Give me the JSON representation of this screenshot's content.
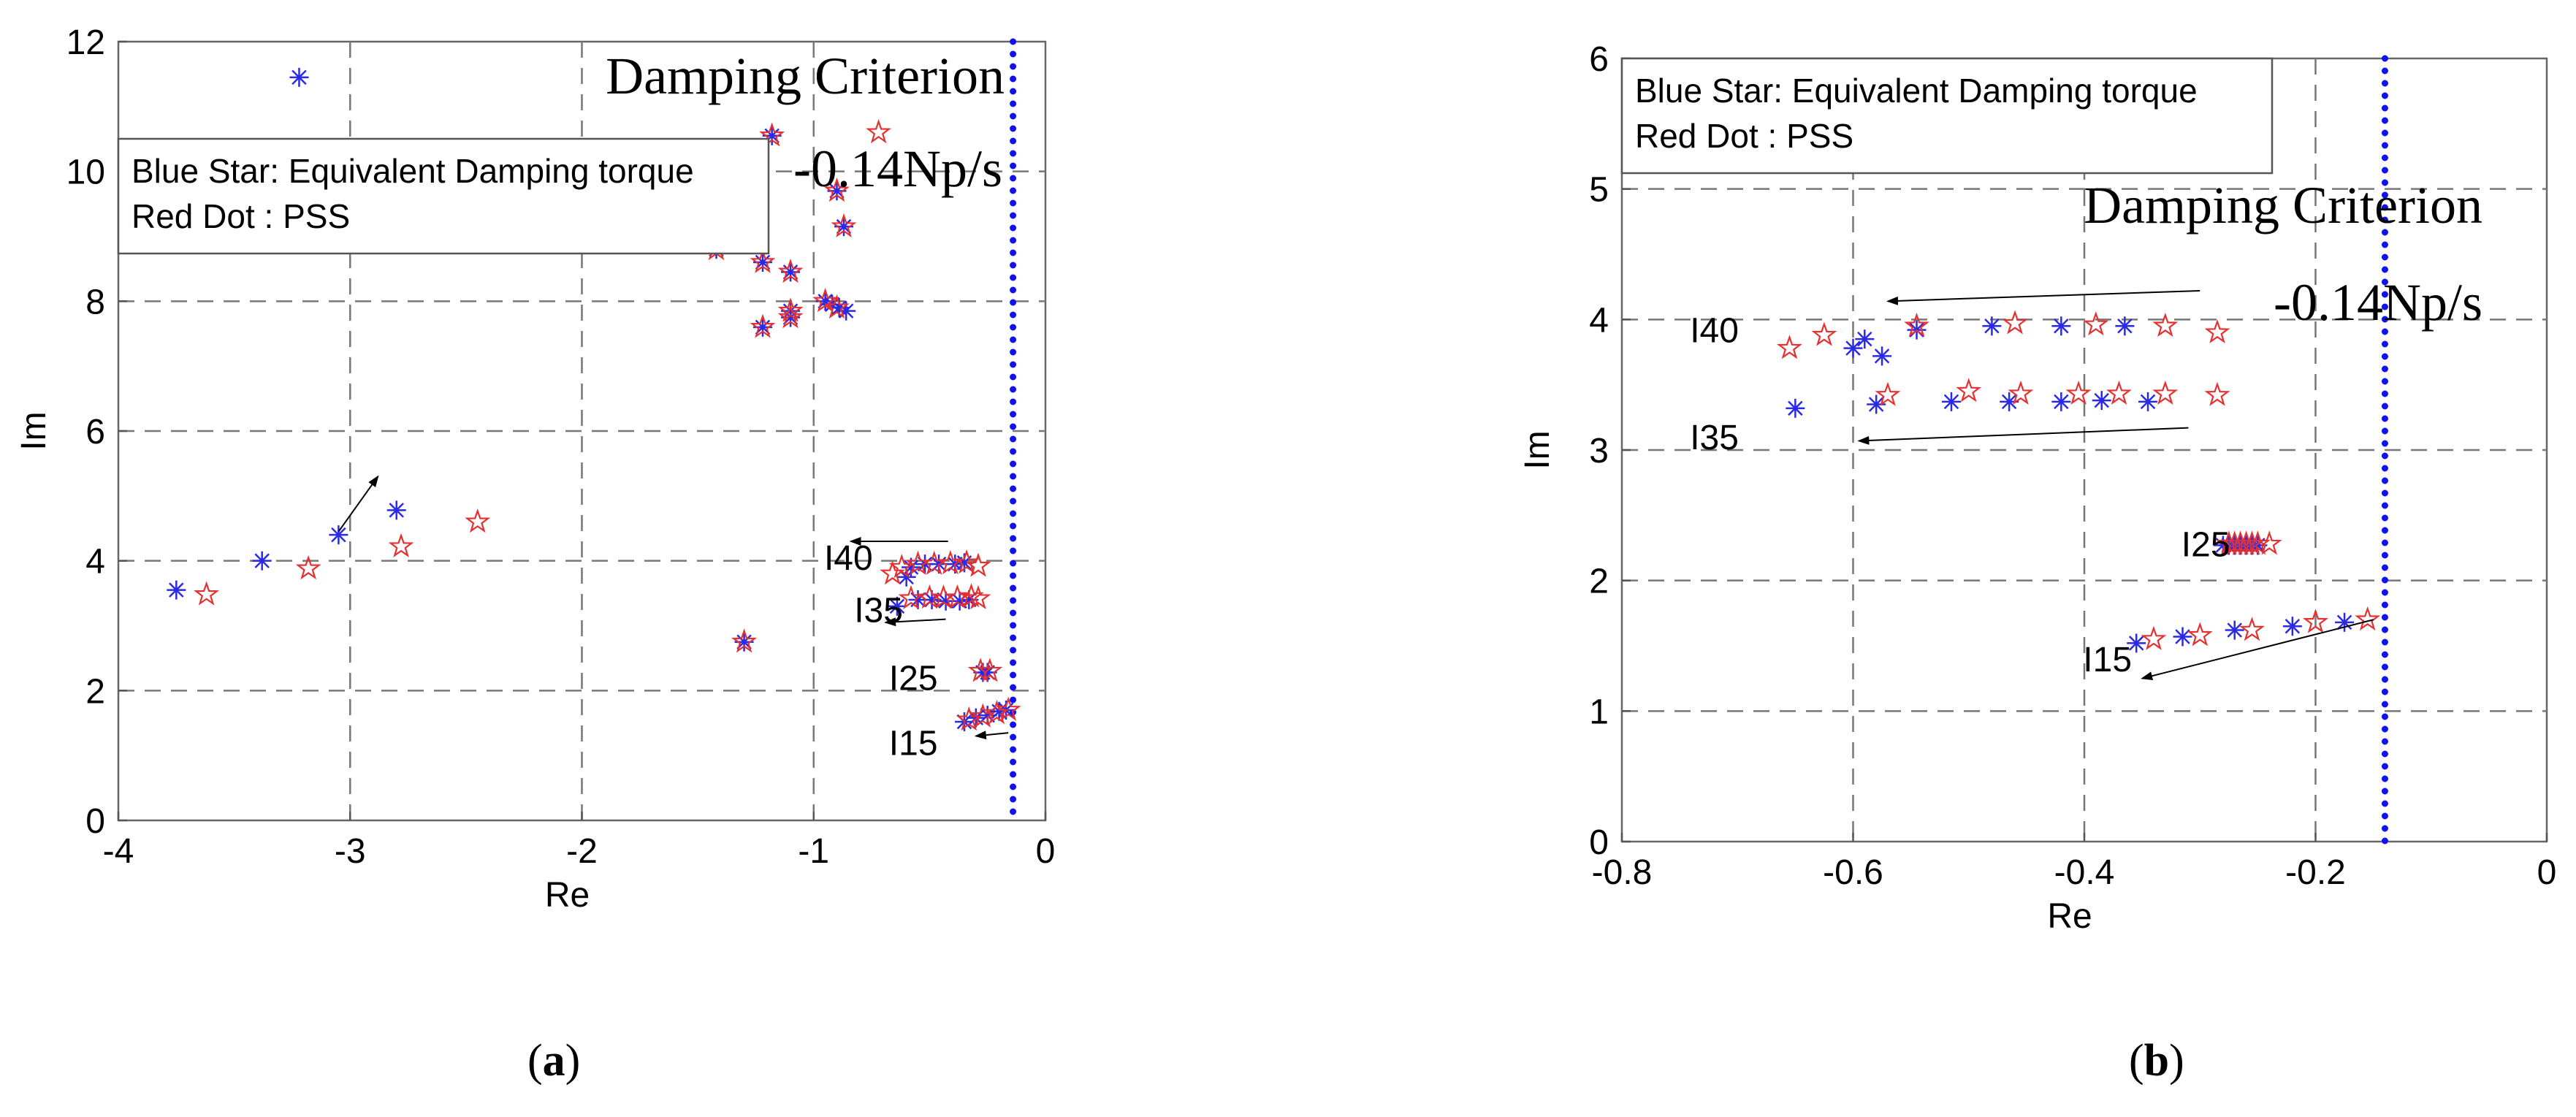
{
  "panels": [
    {
      "id": "a",
      "caption_letter": "a",
      "legend": [
        "Blue Star: Equivalent Damping torque",
        "Red Dot : PSS"
      ],
      "criterion": {
        "title": "Damping Criterion",
        "value_label": "-0.14Np/s",
        "value": -0.14
      },
      "group_labels": [
        "I40",
        "I35",
        "I25",
        "I15"
      ]
    },
    {
      "id": "b",
      "caption_letter": "b",
      "legend": [
        "Blue Star: Equivalent Damping torque",
        "Red Dot : PSS"
      ],
      "criterion": {
        "title": "Damping Criterion",
        "value_label": "-0.14Np/s",
        "value": -0.14
      },
      "group_labels": [
        "I40",
        "I35",
        "I25",
        "I15"
      ]
    }
  ],
  "chart_data": [
    {
      "type": "scatter",
      "title": "",
      "xlabel": "Re",
      "ylabel": "Im",
      "xlim": [
        -4,
        0
      ],
      "ylim": [
        0,
        12
      ],
      "xticks": [
        -4,
        -3,
        -2,
        -1,
        0
      ],
      "yticks": [
        0,
        2,
        4,
        6,
        8,
        10,
        12
      ],
      "grid": "dashed",
      "legend_position": "top-left",
      "vline": -0.14,
      "series": [
        {
          "name": "Blue Star: Equivalent Damping torque",
          "marker": "asterisk",
          "color": "#2a2ae6",
          "points": [
            [
              -3.22,
              11.45
            ],
            [
              -1.18,
              10.55
            ],
            [
              -0.9,
              9.7
            ],
            [
              -0.87,
              9.15
            ],
            [
              -1.42,
              8.8
            ],
            [
              -1.22,
              8.6
            ],
            [
              -1.1,
              8.45
            ],
            [
              -1.1,
              7.85
            ],
            [
              -1.1,
              7.75
            ],
            [
              -1.22,
              7.6
            ],
            [
              -0.95,
              8.0
            ],
            [
              -0.92,
              7.95
            ],
            [
              -0.89,
              7.9
            ],
            [
              -0.86,
              7.85
            ],
            [
              -3.75,
              3.55
            ],
            [
              -3.38,
              4.0
            ],
            [
              -3.05,
              4.4
            ],
            [
              -2.8,
              4.78
            ],
            [
              -1.3,
              2.75
            ],
            [
              -0.64,
              3.3
            ],
            [
              -0.6,
              3.75
            ],
            [
              -0.58,
              3.9
            ],
            [
              -0.52,
              3.95
            ],
            [
              -0.46,
              3.95
            ],
            [
              -0.39,
              3.95
            ],
            [
              -0.35,
              3.97
            ],
            [
              -0.55,
              3.4
            ],
            [
              -0.49,
              3.4
            ],
            [
              -0.43,
              3.38
            ],
            [
              -0.37,
              3.38
            ],
            [
              -0.33,
              3.4
            ],
            [
              -0.27,
              2.28
            ],
            [
              -0.25,
              2.28
            ],
            [
              -0.35,
              1.52
            ],
            [
              -0.3,
              1.58
            ],
            [
              -0.25,
              1.62
            ],
            [
              -0.2,
              1.68
            ],
            [
              -0.17,
              1.7
            ]
          ]
        },
        {
          "name": "Red Dot : PSS",
          "marker": "star",
          "color": "#e63030",
          "points": [
            [
              -0.72,
              10.6
            ],
            [
              -1.18,
              10.55
            ],
            [
              -0.9,
              9.7
            ],
            [
              -0.87,
              9.15
            ],
            [
              -1.42,
              8.8
            ],
            [
              -1.22,
              8.6
            ],
            [
              -1.1,
              8.45
            ],
            [
              -1.1,
              7.85
            ],
            [
              -1.1,
              7.75
            ],
            [
              -1.22,
              7.6
            ],
            [
              -0.95,
              8.0
            ],
            [
              -0.9,
              7.9
            ],
            [
              -3.62,
              3.48
            ],
            [
              -3.18,
              3.88
            ],
            [
              -2.78,
              4.22
            ],
            [
              -2.45,
              4.6
            ],
            [
              -1.3,
              2.75
            ],
            [
              -0.66,
              3.8
            ],
            [
              -0.62,
              3.9
            ],
            [
              -0.55,
              3.95
            ],
            [
              -0.48,
              3.95
            ],
            [
              -0.41,
              3.96
            ],
            [
              -0.34,
              3.97
            ],
            [
              -0.29,
              3.92
            ],
            [
              -0.58,
              3.42
            ],
            [
              -0.5,
              3.43
            ],
            [
              -0.44,
              3.43
            ],
            [
              -0.38,
              3.43
            ],
            [
              -0.32,
              3.45
            ],
            [
              -0.29,
              3.42
            ],
            [
              -0.28,
              2.3
            ],
            [
              -0.24,
              2.3
            ],
            [
              -0.33,
              1.55
            ],
            [
              -0.27,
              1.6
            ],
            [
              -0.21,
              1.65
            ],
            [
              -0.16,
              1.7
            ]
          ]
        }
      ],
      "annotations": [
        {
          "text": "I40",
          "label_at": [
            -0.85,
            4.05
          ],
          "arrow_from": [
            -0.42,
            4.3
          ],
          "arrow_to": [
            -0.84,
            4.3
          ]
        },
        {
          "text": "I35",
          "label_at": [
            -0.72,
            3.25
          ],
          "arrow_from": [
            -0.43,
            3.1
          ],
          "arrow_to": [
            -0.69,
            3.05
          ]
        },
        {
          "text": "I25",
          "label_at": [
            -0.57,
            2.2
          ],
          "arrow_from": null,
          "arrow_to": null
        },
        {
          "text": "I15",
          "label_at": [
            -0.57,
            1.2
          ],
          "arrow_from": [
            -0.16,
            1.35
          ],
          "arrow_to": [
            -0.3,
            1.3
          ]
        },
        {
          "text": "",
          "label_at": null,
          "arrow_from": [
            -3.05,
            4.45
          ],
          "arrow_to": [
            -2.88,
            5.3
          ]
        }
      ]
    },
    {
      "type": "scatter",
      "title": "",
      "xlabel": "Re",
      "ylabel": "Im",
      "xlim": [
        -0.8,
        0
      ],
      "ylim": [
        0,
        6
      ],
      "xticks": [
        -0.8,
        -0.6,
        -0.4,
        -0.2,
        0
      ],
      "yticks": [
        0,
        1,
        2,
        3,
        4,
        5,
        6
      ],
      "grid": "dashed",
      "legend_position": "top-left",
      "vline": -0.14,
      "series": [
        {
          "name": "Blue Star: Equivalent Damping torque",
          "marker": "asterisk",
          "color": "#2a2ae6",
          "points": [
            [
              -0.6,
              3.78
            ],
            [
              -0.59,
              3.85
            ],
            [
              -0.575,
              3.72
            ],
            [
              -0.545,
              3.92
            ],
            [
              -0.48,
              3.95
            ],
            [
              -0.42,
              3.95
            ],
            [
              -0.365,
              3.95
            ],
            [
              -0.65,
              3.32
            ],
            [
              -0.58,
              3.35
            ],
            [
              -0.515,
              3.37
            ],
            [
              -0.465,
              3.37
            ],
            [
              -0.42,
              3.37
            ],
            [
              -0.385,
              3.38
            ],
            [
              -0.345,
              3.37
            ],
            [
              -0.28,
              2.27
            ],
            [
              -0.275,
              2.27
            ],
            [
              -0.27,
              2.27
            ],
            [
              -0.265,
              2.27
            ],
            [
              -0.26,
              2.27
            ],
            [
              -0.255,
              2.27
            ],
            [
              -0.25,
              2.27
            ],
            [
              -0.355,
              1.52
            ],
            [
              -0.315,
              1.57
            ],
            [
              -0.27,
              1.62
            ],
            [
              -0.22,
              1.65
            ],
            [
              -0.175,
              1.68
            ]
          ]
        },
        {
          "name": "Red Dot : PSS",
          "marker": "star",
          "color": "#e63030",
          "points": [
            [
              -0.655,
              3.78
            ],
            [
              -0.625,
              3.88
            ],
            [
              -0.545,
              3.95
            ],
            [
              -0.46,
              3.97
            ],
            [
              -0.39,
              3.96
            ],
            [
              -0.33,
              3.95
            ],
            [
              -0.285,
              3.9
            ],
            [
              -0.57,
              3.42
            ],
            [
              -0.5,
              3.45
            ],
            [
              -0.455,
              3.43
            ],
            [
              -0.405,
              3.43
            ],
            [
              -0.37,
              3.43
            ],
            [
              -0.33,
              3.43
            ],
            [
              -0.285,
              3.42
            ],
            [
              -0.275,
              2.28
            ],
            [
              -0.27,
              2.28
            ],
            [
              -0.265,
              2.28
            ],
            [
              -0.26,
              2.28
            ],
            [
              -0.255,
              2.28
            ],
            [
              -0.25,
              2.28
            ],
            [
              -0.24,
              2.28
            ],
            [
              -0.34,
              1.55
            ],
            [
              -0.3,
              1.58
            ],
            [
              -0.255,
              1.62
            ],
            [
              -0.2,
              1.68
            ],
            [
              -0.155,
              1.7
            ]
          ]
        }
      ],
      "annotations": [
        {
          "text": "I40",
          "label_at": [
            -0.72,
            3.92
          ],
          "arrow_from": [
            -0.3,
            4.22
          ],
          "arrow_to": [
            -0.57,
            4.14
          ]
        },
        {
          "text": "I35",
          "label_at": [
            -0.72,
            3.1
          ],
          "arrow_from": [
            -0.31,
            3.17
          ],
          "arrow_to": [
            -0.595,
            3.07
          ]
        },
        {
          "text": "I25",
          "label_at": [
            -0.295,
            2.28
          ],
          "arrow_from": null,
          "arrow_to": null
        },
        {
          "text": "I15",
          "label_at": [
            -0.38,
            1.4
          ],
          "arrow_from": [
            -0.15,
            1.7
          ],
          "arrow_to": [
            -0.35,
            1.25
          ]
        }
      ]
    }
  ]
}
